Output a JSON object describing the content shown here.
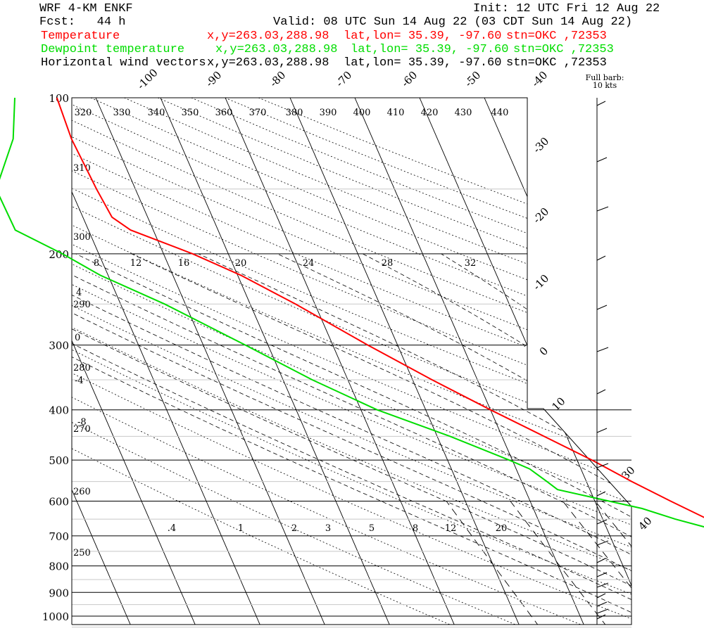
{
  "header": {
    "model": "WRF 4-KM ENKF",
    "init": "Init: 12 UTC Fri 12 Aug 22",
    "fcst": "Fcst:   44 h",
    "valid": "Valid: 08 UTC Sun 14 Aug 22 (03 CDT Sun 14 Aug 22)",
    "lines": [
      {
        "label": "Temperature",
        "xy": "x,y=263.03,288.98",
        "latlon": "lat,lon= 35.39, -97.60",
        "stn": "stn=OKC ,72353",
        "color": "#ff0000"
      },
      {
        "label": "Dewpoint temperature",
        "xy": "x,y=263.03,288.98",
        "latlon": "lat,lon= 35.39, -97.60",
        "stn": "stn=OKC ,72353",
        "color": "#00dd00"
      },
      {
        "label": "Horizontal wind vectors",
        "xy": "x,y=263.03,288.98",
        "latlon": "lat,lon= 35.39, -97.60",
        "stn": "stn=OKC ,72353",
        "color": "#000000"
      }
    ]
  },
  "barb_note": {
    "line1": "Full barb:",
    "line2": "10 kts"
  },
  "chart_data": {
    "type": "line",
    "diagram": "skew-T log-P",
    "y_scale": "log",
    "pressure_ticks": [
      100,
      200,
      300,
      400,
      500,
      600,
      700,
      800,
      900,
      1000
    ],
    "isotherm_labels": [
      "-100",
      "-90",
      "-80",
      "-70",
      "-60",
      "-50",
      "-40",
      "-30",
      "-20",
      "-10",
      "0",
      "10",
      "30",
      "40"
    ],
    "theta_labels": [
      "320",
      "330",
      "340",
      "350",
      "360",
      "370",
      "380",
      "390",
      "400",
      "410",
      "420",
      "430",
      "440"
    ],
    "dry_adiabat_side_labels": [
      "310",
      "300",
      "290",
      "280",
      "270",
      "260",
      "250"
    ],
    "moist_adiabat_labels": [
      "8",
      "12",
      "16",
      "20",
      "24",
      "28",
      "32"
    ],
    "moist_side_labels": [
      "4",
      "0",
      "-4",
      "-8"
    ],
    "mixing_ratio_labels": [
      ".4",
      "1",
      "2",
      "3",
      "5",
      "8",
      "12",
      "20"
    ],
    "series": [
      {
        "name": "Temperature",
        "color": "#ff0000",
        "p": [
          960,
          950,
          925,
          900,
          850,
          800,
          750,
          700,
          650,
          600,
          550,
          500,
          450,
          400,
          350,
          300,
          250,
          220,
          200,
          180,
          170,
          150,
          120,
          100
        ],
        "t": [
          22.5,
          24.2,
          24.2,
          22.5,
          19.8,
          16.6,
          12.8,
          10.0,
          6.2,
          1.7,
          -3.0,
          -7.7,
          -13.5,
          -20.0,
          -27.0,
          -34.6,
          -43.0,
          -49.5,
          -55.5,
          -63.5,
          -65.5,
          -66.0,
          -66.5,
          -66.0
        ]
      },
      {
        "name": "Dewpoint temperature",
        "color": "#00dd00",
        "p": [
          960,
          925,
          900,
          850,
          800,
          750,
          700,
          680,
          650,
          620,
          600,
          570,
          550,
          520,
          500,
          450,
          400,
          350,
          300,
          250,
          220,
          200,
          180,
          150,
          120,
          100
        ],
        "t": [
          19.0,
          18.5,
          18.6,
          18.0,
          16.0,
          12.8,
          9.0,
          6.4,
          1.2,
          -3.2,
          -7.8,
          -15.0,
          -16.1,
          -17.9,
          -20.5,
          -28.0,
          -37.5,
          -45.5,
          -53.5,
          -63.2,
          -71.2,
          -75.6,
          -81.3,
          -81.5,
          -75.5,
          -72.5
        ]
      }
    ]
  }
}
